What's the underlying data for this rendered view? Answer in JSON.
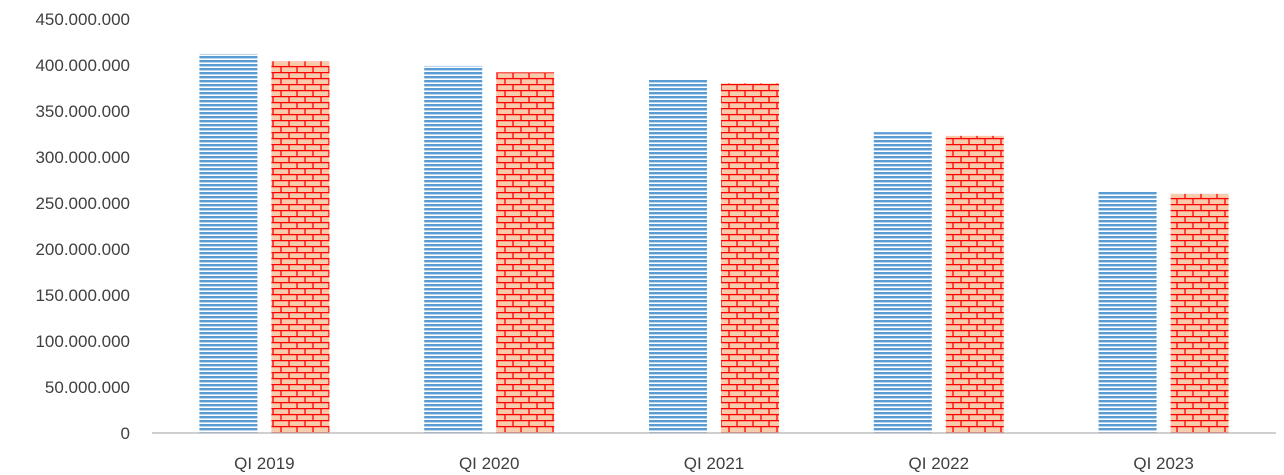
{
  "chart_data": {
    "type": "bar",
    "title": "",
    "xlabel": "",
    "ylabel": "",
    "categories": [
      "QI 2019",
      "QI 2020",
      "QI 2021",
      "QI 2022",
      "QI 2023"
    ],
    "series": [
      {
        "values": [
          412000000,
          399000000,
          385000000,
          327000000,
          263000000
        ],
        "pattern": "horizontal-stripes",
        "color": "#5b9bd5"
      },
      {
        "values": [
          404000000,
          392000000,
          380000000,
          323000000,
          260000000
        ],
        "pattern": "brick",
        "color": "#ff0000",
        "fill": "#f8cbad"
      }
    ],
    "ylim": [
      0,
      450000000
    ],
    "yticks": [
      0,
      50000000,
      100000000,
      150000000,
      200000000,
      250000000,
      300000000,
      350000000,
      400000000,
      450000000
    ],
    "ytick_labels": [
      "0",
      "50.000.000",
      "100.000.000",
      "150.000.000",
      "200.000.000",
      "250.000.000",
      "300.000.000",
      "350.000.000",
      "400.000.000",
      "450.000.000"
    ],
    "grid": false,
    "legend": "none"
  }
}
